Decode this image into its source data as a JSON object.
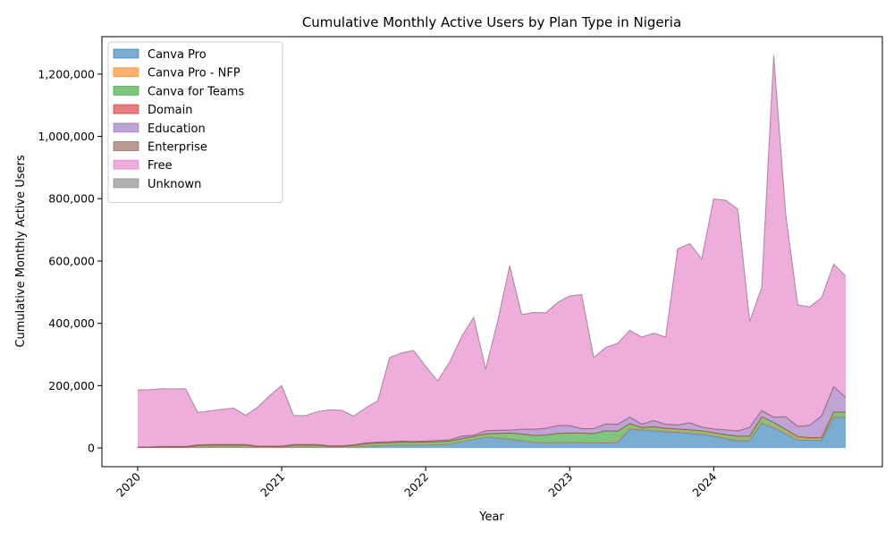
{
  "chart_data": {
    "type": "area",
    "stacked": true,
    "title": "Cumulative Monthly Active Users by Plan Type in Nigeria",
    "xlabel": "Year",
    "ylabel": "Cumulative Monthly Active Users",
    "ylim": [
      -60000,
      1320000
    ],
    "y_ticks": [
      0,
      200000,
      400000,
      600000,
      800000,
      1000000,
      1200000
    ],
    "y_tick_labels": [
      "0",
      "200,000",
      "400,000",
      "600,000",
      "800,000",
      "1,000,000",
      "1,200,000"
    ],
    "x_ticks": [
      2020,
      2021,
      2022,
      2023,
      2024
    ],
    "x_tick_labels": [
      "2020",
      "2021",
      "2022",
      "2023",
      "2024"
    ],
    "grid": false,
    "legend_position": "top-left",
    "months": [
      "2020-01",
      "2020-02",
      "2020-03",
      "2020-04",
      "2020-05",
      "2020-06",
      "2020-07",
      "2020-08",
      "2020-09",
      "2020-10",
      "2020-11",
      "2020-12",
      "2021-01",
      "2021-02",
      "2021-03",
      "2021-04",
      "2021-05",
      "2021-06",
      "2021-07",
      "2021-08",
      "2021-09",
      "2021-10",
      "2021-11",
      "2021-12",
      "2022-01",
      "2022-02",
      "2022-03",
      "2022-04",
      "2022-05",
      "2022-06",
      "2022-07",
      "2022-08",
      "2022-09",
      "2022-10",
      "2022-11",
      "2022-12",
      "2023-01",
      "2023-02",
      "2023-03",
      "2023-04",
      "2023-05",
      "2023-06",
      "2023-07",
      "2023-08",
      "2023-09",
      "2023-10",
      "2023-11",
      "2023-12",
      "2024-01",
      "2024-02",
      "2024-03",
      "2024-04",
      "2024-05",
      "2024-06",
      "2024-07",
      "2024-08",
      "2024-09",
      "2024-10",
      "2024-11",
      "2024-12"
    ],
    "series": [
      {
        "name": "Canva Pro",
        "color": "#1f77b4",
        "values": [
          2000,
          2000,
          2000,
          2000,
          2000,
          3000,
          3000,
          3000,
          3000,
          3000,
          2000,
          2000,
          2000,
          3000,
          3000,
          3000,
          3000,
          3000,
          3000,
          5000,
          7000,
          8000,
          10000,
          9000,
          10000,
          10000,
          12000,
          20000,
          27000,
          35000,
          32000,
          28000,
          23000,
          18000,
          16000,
          17000,
          18000,
          17000,
          16000,
          16000,
          18000,
          60000,
          58000,
          55000,
          52000,
          50000,
          47000,
          44000,
          38000,
          30000,
          23000,
          23000,
          80000,
          65000,
          45000,
          25000,
          25000,
          25000,
          98000,
          98000
        ]
      },
      {
        "name": "Canva Pro - NFP",
        "color": "#ff7f0e",
        "values": [
          0,
          0,
          0,
          0,
          0,
          0,
          0,
          0,
          0,
          0,
          0,
          0,
          0,
          0,
          0,
          0,
          0,
          0,
          0,
          0,
          0,
          0,
          0,
          0,
          0,
          0,
          0,
          0,
          0,
          0,
          0,
          0,
          0,
          0,
          0,
          0,
          0,
          0,
          0,
          3000,
          4000,
          3000,
          3000,
          3000,
          3000,
          3000,
          3000,
          3000,
          3000,
          3000,
          3000,
          3000,
          3000,
          4000,
          4000,
          4000,
          4000,
          4000,
          2000,
          2000
        ]
      },
      {
        "name": "Canva for Teams",
        "color": "#2ca02c",
        "values": [
          0,
          0,
          1000,
          1000,
          1000,
          5000,
          6000,
          6000,
          6000,
          6000,
          3000,
          3000,
          3000,
          6000,
          6000,
          6000,
          3000,
          3000,
          5000,
          8000,
          9000,
          9000,
          9000,
          9000,
          9000,
          10000,
          10000,
          10000,
          10000,
          10000,
          15000,
          20000,
          22000,
          22000,
          25000,
          30000,
          30000,
          31000,
          30000,
          36000,
          32000,
          15000,
          5000,
          10000,
          8000,
          8000,
          8000,
          8000,
          8000,
          10000,
          12000,
          12000,
          17000,
          13000,
          11000,
          8000,
          4000,
          4000,
          15000,
          15000
        ]
      },
      {
        "name": "Domain",
        "color": "#d62728",
        "values": [
          0,
          0,
          0,
          0,
          0,
          0,
          0,
          0,
          0,
          0,
          0,
          0,
          0,
          0,
          0,
          0,
          0,
          0,
          0,
          0,
          0,
          0,
          0,
          0,
          0,
          0,
          0,
          0,
          0,
          0,
          0,
          0,
          0,
          0,
          0,
          0,
          0,
          0,
          0,
          0,
          0,
          0,
          0,
          0,
          0,
          0,
          0,
          0,
          0,
          0,
          0,
          0,
          0,
          0,
          0,
          0,
          0,
          0,
          0,
          0
        ]
      },
      {
        "name": "Education",
        "color": "#9467bd",
        "values": [
          1000,
          1000,
          2000,
          2000,
          2000,
          2000,
          2000,
          2000,
          2000,
          2000,
          1000,
          1000,
          1000,
          2000,
          2000,
          2000,
          1000,
          1000,
          2000,
          3000,
          3000,
          3000,
          3000,
          3000,
          3000,
          4000,
          4000,
          8000,
          4000,
          10000,
          10000,
          9000,
          15000,
          20000,
          22000,
          25000,
          24000,
          14000,
          16000,
          22000,
          22000,
          21000,
          10000,
          20000,
          13000,
          13000,
          23000,
          12000,
          12000,
          15000,
          17000,
          28000,
          20000,
          17000,
          40000,
          32000,
          40000,
          70000,
          82000,
          47000
        ]
      },
      {
        "name": "Enterprise",
        "color": "#8c564b",
        "values": [
          0,
          0,
          0,
          0,
          0,
          0,
          0,
          0,
          0,
          0,
          0,
          0,
          0,
          0,
          0,
          0,
          0,
          0,
          0,
          0,
          0,
          0,
          0,
          0,
          0,
          0,
          0,
          0,
          0,
          0,
          0,
          0,
          0,
          0,
          0,
          0,
          0,
          0,
          0,
          0,
          0,
          0,
          0,
          0,
          0,
          0,
          0,
          0,
          0,
          0,
          0,
          0,
          0,
          0,
          0,
          0,
          0,
          0,
          0,
          0
        ]
      },
      {
        "name": "Free",
        "color": "#e377c2",
        "values": [
          183000,
          184000,
          185000,
          185000,
          185000,
          104000,
          108000,
          113000,
          117000,
          94000,
          125000,
          162000,
          194000,
          93000,
          93000,
          106000,
          115000,
          114000,
          92000,
          113000,
          132000,
          270000,
          283000,
          292000,
          240000,
          191000,
          250000,
          320000,
          378000,
          198000,
          350000,
          528000,
          368000,
          375000,
          371000,
          395000,
          416000,
          430000,
          228000,
          246000,
          260000,
          278000,
          280000,
          280000,
          280000,
          565000,
          575000,
          540000,
          738000,
          737000,
          712000,
          340000,
          395000,
          1160000,
          650000,
          390000,
          380000,
          380000,
          393000,
          390000
        ]
      },
      {
        "name": "Unknown",
        "color": "#7f7f7f",
        "values": [
          0,
          0,
          0,
          0,
          0,
          0,
          0,
          0,
          0,
          0,
          0,
          0,
          0,
          0,
          0,
          0,
          0,
          0,
          0,
          0,
          0,
          0,
          0,
          0,
          0,
          0,
          0,
          0,
          0,
          0,
          0,
          0,
          0,
          0,
          0,
          0,
          0,
          0,
          0,
          0,
          0,
          0,
          0,
          0,
          0,
          0,
          0,
          0,
          0,
          0,
          0,
          0,
          0,
          0,
          0,
          0,
          0,
          0,
          0,
          0
        ]
      }
    ]
  }
}
